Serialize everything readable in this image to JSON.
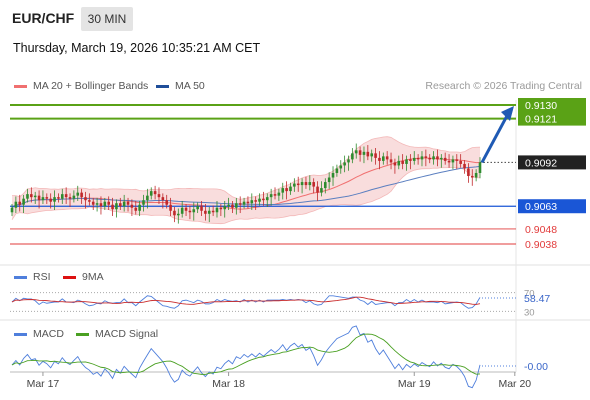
{
  "header": {
    "pair": "EUR/CHF",
    "timeframe": "30 MIN",
    "timestamp": "Thursday, March 19, 2026 10:35:21 AM CET"
  },
  "legend": {
    "ma20": {
      "label": "MA 20 + Bollinger Bands",
      "color": "#f07070"
    },
    "ma50": {
      "label": "MA 50",
      "color": "#1f4e99"
    }
  },
  "source": "Research © 2026 Trading Central",
  "rsi_legend": {
    "rsi": "RSI",
    "ma": "9MA"
  },
  "macd_legend": {
    "macd": "MACD",
    "signal": "MACD Signal"
  },
  "colors": {
    "up": "#2e8b2e",
    "down": "#c0282b",
    "target": "#5aa216",
    "pivot": "#1a56d6",
    "support": "#e23b3b",
    "arrow": "#1f5ab4",
    "band": "#f8d5d5",
    "current_tag": "#222222"
  },
  "chart_data": {
    "type": "candlestick",
    "price_range": [
      0.902,
      0.914
    ],
    "time_labels": [
      {
        "label": "Mar 17",
        "index": 8
      },
      {
        "label": "Mar 18",
        "index": 56
      },
      {
        "label": "Mar 19",
        "index": 104
      },
      {
        "label": "Mar 20",
        "index": 130
      }
    ],
    "levels": [
      {
        "value": 0.913,
        "label": "0.9130",
        "kind": "target"
      },
      {
        "value": 0.9121,
        "label": "0.9121",
        "kind": "target"
      },
      {
        "value": 0.9092,
        "label": "0.9092",
        "kind": "current"
      },
      {
        "value": 0.9063,
        "label": "0.9063",
        "kind": "pivot"
      },
      {
        "value": 0.9048,
        "label": "0.9048",
        "kind": "support"
      },
      {
        "value": 0.9038,
        "label": "0.9038",
        "kind": "support"
      }
    ],
    "closes": [
      0.9062,
      0.9066,
      0.9064,
      0.9068,
      0.9071,
      0.9069,
      0.907,
      0.9067,
      0.9069,
      0.9068,
      0.9066,
      0.9069,
      0.9068,
      0.9071,
      0.9069,
      0.9068,
      0.907,
      0.9072,
      0.9069,
      0.9067,
      0.9066,
      0.9064,
      0.9065,
      0.9063,
      0.9066,
      0.9064,
      0.9061,
      0.9065,
      0.9063,
      0.9066,
      0.9064,
      0.9062,
      0.906,
      0.9064,
      0.9067,
      0.907,
      0.9073,
      0.9071,
      0.9069,
      0.9067,
      0.9064,
      0.906,
      0.9057,
      0.9058,
      0.9062,
      0.906,
      0.9059,
      0.9061,
      0.9063,
      0.906,
      0.9058,
      0.906,
      0.9059,
      0.9062,
      0.9061,
      0.9063,
      0.9064,
      0.9062,
      0.9065,
      0.9064,
      0.9066,
      0.9065,
      0.9067,
      0.9066,
      0.9068,
      0.9067,
      0.9069,
      0.9071,
      0.907,
      0.9072,
      0.9075,
      0.9073,
      0.9076,
      0.9078,
      0.9077,
      0.9079,
      0.9077,
      0.9079,
      0.9076,
      0.9072,
      0.9075,
      0.9079,
      0.9082,
      0.9085,
      0.9088,
      0.909,
      0.9092,
      0.9094,
      0.9098,
      0.91,
      0.9097,
      0.9099,
      0.9096,
      0.9098,
      0.9095,
      0.9093,
      0.9096,
      0.9094,
      0.9092,
      0.909,
      0.9093,
      0.9091,
      0.9094,
      0.9093,
      0.9095,
      0.9094,
      0.9096,
      0.9095,
      0.9094,
      0.9096,
      0.9094,
      0.9095,
      0.9093,
      0.9092,
      0.9094,
      0.9093,
      0.9091,
      0.9088,
      0.9083,
      0.9082,
      0.9085,
      0.9092
    ],
    "rsi": {
      "last": 58.47,
      "levels": [
        70,
        30
      ],
      "range": [
        20,
        80
      ]
    },
    "macd": {
      "last": -0.0,
      "zero_label": "-0.00"
    }
  }
}
